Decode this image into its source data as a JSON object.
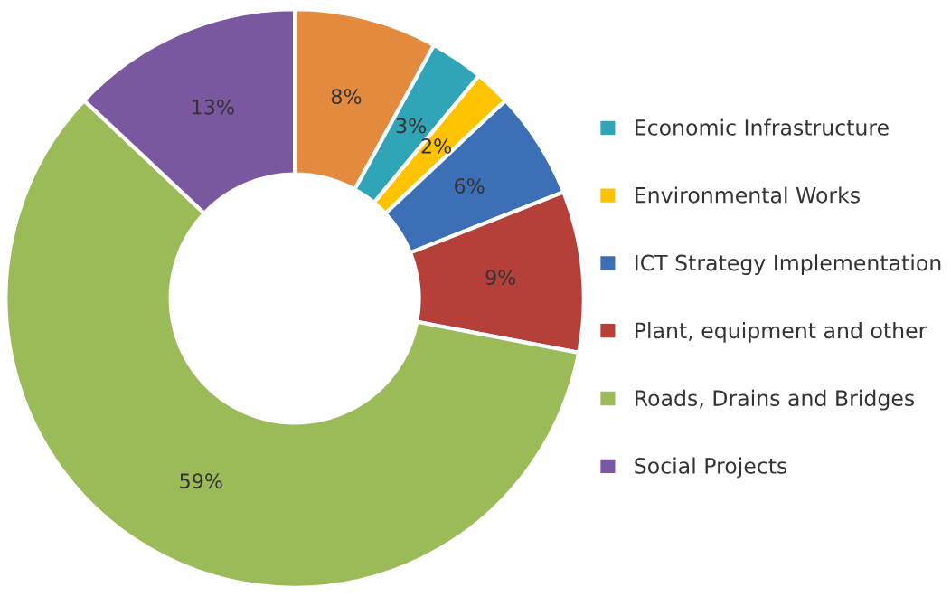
{
  "chart_data": {
    "type": "donut",
    "categories": [
      null,
      "Economic Infrastructure",
      "Environmental Works",
      "ICT Strategy Implementation",
      "Plant, equipment and other",
      "Roads, Drains and Bridges",
      "Social Projects"
    ],
    "values": [
      8,
      3,
      2,
      6,
      9,
      59,
      13
    ],
    "colors": [
      "#e38a3f",
      "#31a5b8",
      "#fdc300",
      "#3d6fb6",
      "#b5403a",
      "#9bbb59",
      "#7a58a0"
    ],
    "value_labels": [
      "8%",
      "3%",
      "2%",
      "6%",
      "9%",
      "59%",
      "13%"
    ],
    "legend": "right"
  }
}
